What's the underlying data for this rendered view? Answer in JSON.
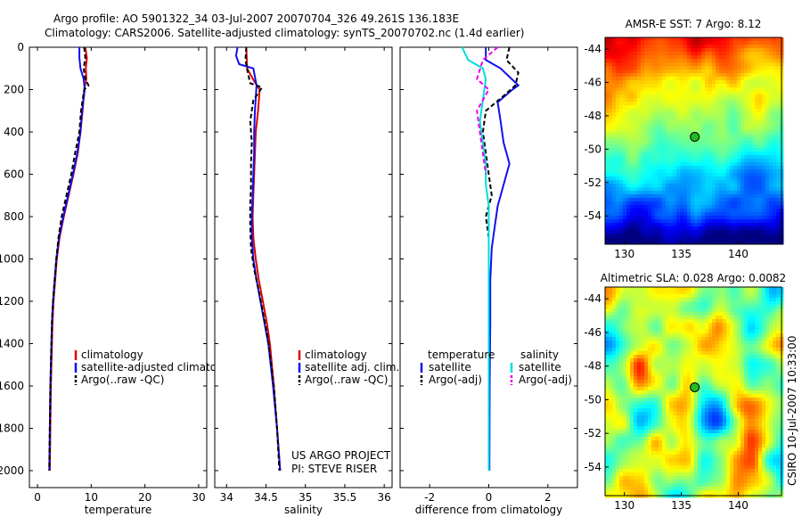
{
  "title_line1": "Argo profile: AO 5901322_34 03-Jul-2007 20070704_326 49.261S 136.183E",
  "title_line2": "Climatology: CARS2006. Satellite-adjusted climatology: synTS_20070702.nc (1.4d earlier)",
  "side_caption": "CSIRO 10-Jul-2007 10:33:00",
  "project_line1": "US ARGO PROJECT",
  "project_line2": "PI: STEVE RISER",
  "colors": {
    "climatology": "#dd0000",
    "satellite": "#1010ee",
    "argo": "#000000",
    "satellite_salinity": "#00dddd",
    "argo_salinity": "#ee00ee",
    "marker": "#22bb22"
  },
  "chart_data": [
    {
      "id": "temperature",
      "type": "line",
      "xlabel": "temperature",
      "ylabel": "",
      "xlim": [
        -1.5,
        31.5
      ],
      "ylim": [
        2080,
        0
      ],
      "y_reversed": true,
      "xticks": [
        "0",
        "10",
        "20",
        "30"
      ],
      "yticks": [
        "0",
        "200",
        "400",
        "600",
        "800",
        "1000",
        "1200",
        "1400",
        "1600",
        "1800",
        "2000"
      ],
      "legend": [
        "climatology",
        "satellite-adjusted climatology",
        "Argo(..raw -QC)"
      ],
      "legend_position": "lower-left",
      "series": [
        {
          "name": "climatology",
          "color": "#dd0000",
          "dash": false,
          "points": [
            [
              8.9,
              0
            ],
            [
              9.2,
              50
            ],
            [
              9.0,
              100
            ],
            [
              9.1,
              150
            ],
            [
              8.7,
              200
            ],
            [
              8.4,
              300
            ],
            [
              8.0,
              400
            ],
            [
              7.5,
              500
            ],
            [
              6.7,
              600
            ],
            [
              5.8,
              700
            ],
            [
              4.9,
              800
            ],
            [
              4.1,
              900
            ],
            [
              3.6,
              1000
            ],
            [
              3.3,
              1100
            ],
            [
              3.0,
              1200
            ],
            [
              2.8,
              1300
            ],
            [
              2.7,
              1400
            ],
            [
              2.5,
              1600
            ],
            [
              2.4,
              1800
            ],
            [
              2.3,
              2000
            ]
          ]
        },
        {
          "name": "satellite-adjusted climatology",
          "color": "#1010ee",
          "dash": false,
          "points": [
            [
              7.8,
              0
            ],
            [
              7.8,
              50
            ],
            [
              8.0,
              100
            ],
            [
              8.6,
              150
            ],
            [
              8.8,
              200
            ],
            [
              8.3,
              300
            ],
            [
              8.0,
              400
            ],
            [
              7.4,
              500
            ],
            [
              6.6,
              600
            ],
            [
              5.7,
              700
            ],
            [
              4.8,
              800
            ],
            [
              4.0,
              900
            ],
            [
              3.5,
              1000
            ],
            [
              3.2,
              1100
            ],
            [
              2.9,
              1200
            ],
            [
              2.7,
              1300
            ],
            [
              2.6,
              1400
            ],
            [
              2.4,
              1600
            ],
            [
              2.3,
              1800
            ],
            [
              2.2,
              2000
            ]
          ]
        },
        {
          "name": "Argo(..raw -QC)",
          "color": "#000000",
          "dash": true,
          "points": [
            [
              8.7,
              0
            ],
            [
              8.9,
              50
            ],
            [
              8.6,
              100
            ],
            [
              8.9,
              150
            ],
            [
              9.5,
              180
            ],
            [
              8.7,
              200
            ],
            [
              8.1,
              300
            ],
            [
              7.8,
              400
            ],
            [
              7.0,
              500
            ],
            [
              6.3,
              600
            ],
            [
              5.4,
              700
            ],
            [
              4.5,
              800
            ],
            [
              3.9,
              900
            ],
            [
              3.5,
              1000
            ],
            [
              3.2,
              1100
            ],
            [
              2.9,
              1200
            ],
            [
              2.7,
              1300
            ],
            [
              2.6,
              1400
            ],
            [
              2.4,
              1600
            ],
            [
              2.3,
              1800
            ],
            [
              2.2,
              2000
            ]
          ]
        }
      ]
    },
    {
      "id": "salinity",
      "type": "line",
      "xlabel": "salinity",
      "xlim": [
        33.85,
        36.1
      ],
      "ylim": [
        2080,
        0
      ],
      "y_reversed": true,
      "xticks": [
        "34",
        "34.5",
        "35",
        "35.5",
        "36"
      ],
      "legend": [
        "climatology",
        "satellite adj. clim.",
        "Argo(..raw -QC)"
      ],
      "legend_position": "lower-right",
      "series": [
        {
          "name": "climatology",
          "color": "#dd0000",
          "dash": false,
          "points": [
            [
              34.25,
              0
            ],
            [
              34.26,
              100
            ],
            [
              34.35,
              160
            ],
            [
              34.42,
              200
            ],
            [
              34.4,
              300
            ],
            [
              34.37,
              400
            ],
            [
              34.36,
              500
            ],
            [
              34.35,
              600
            ],
            [
              34.34,
              700
            ],
            [
              34.33,
              800
            ],
            [
              34.34,
              900
            ],
            [
              34.37,
              1000
            ],
            [
              34.41,
              1100
            ],
            [
              34.46,
              1200
            ],
            [
              34.51,
              1300
            ],
            [
              34.55,
              1400
            ],
            [
              34.6,
              1600
            ],
            [
              34.64,
              1800
            ],
            [
              34.68,
              2000
            ]
          ]
        },
        {
          "name": "satellite adj. clim.",
          "color": "#1010ee",
          "dash": false,
          "points": [
            [
              34.14,
              0
            ],
            [
              34.12,
              40
            ],
            [
              34.16,
              80
            ],
            [
              34.34,
              100
            ],
            [
              34.38,
              180
            ],
            [
              34.36,
              300
            ],
            [
              34.35,
              400
            ],
            [
              34.35,
              500
            ],
            [
              34.34,
              600
            ],
            [
              34.33,
              700
            ],
            [
              34.32,
              800
            ],
            [
              34.32,
              900
            ],
            [
              34.34,
              1000
            ],
            [
              34.38,
              1100
            ],
            [
              34.43,
              1200
            ],
            [
              34.48,
              1300
            ],
            [
              34.53,
              1400
            ],
            [
              34.59,
              1600
            ],
            [
              34.64,
              1800
            ],
            [
              34.68,
              2000
            ]
          ]
        },
        {
          "name": "Argo(..raw -QC)",
          "color": "#000000",
          "dash": true,
          "points": [
            [
              34.25,
              0
            ],
            [
              34.24,
              60
            ],
            [
              34.27,
              120
            ],
            [
              34.3,
              170
            ],
            [
              34.45,
              190
            ],
            [
              34.34,
              250
            ],
            [
              34.3,
              350
            ],
            [
              34.32,
              450
            ],
            [
              34.31,
              550
            ],
            [
              34.31,
              650
            ],
            [
              34.3,
              750
            ],
            [
              34.3,
              850
            ],
            [
              34.31,
              950
            ],
            [
              34.35,
              1050
            ],
            [
              34.41,
              1150
            ],
            [
              34.46,
              1250
            ],
            [
              34.51,
              1350
            ],
            [
              34.55,
              1450
            ],
            [
              34.6,
              1600
            ],
            [
              34.64,
              1800
            ],
            [
              34.67,
              2000
            ]
          ]
        }
      ]
    },
    {
      "id": "difference",
      "type": "line",
      "xlabel": "difference from climatology",
      "xlim": [
        -3,
        3
      ],
      "ylim": [
        2080,
        0
      ],
      "y_reversed": true,
      "xticks": [
        "-2",
        "0",
        "2"
      ],
      "legend_groups": [
        {
          "heading": "temperature",
          "entries": [
            "satellite",
            "Argo(-adj)"
          ]
        },
        {
          "heading": "salinity",
          "entries": [
            "satellite",
            "Argo(-adj)"
          ]
        }
      ],
      "legend_position": "lower-center",
      "series": [
        {
          "name": "temperature satellite",
          "color": "#1010ee",
          "dash": false,
          "points": [
            [
              -0.1,
              0
            ],
            [
              -0.1,
              60
            ],
            [
              0.4,
              100
            ],
            [
              1.0,
              180
            ],
            [
              0.8,
              200
            ],
            [
              0.3,
              260
            ],
            [
              0.4,
              350
            ],
            [
              0.5,
              450
            ],
            [
              0.7,
              550
            ],
            [
              0.5,
              650
            ],
            [
              0.3,
              750
            ],
            [
              0.2,
              850
            ],
            [
              0.1,
              950
            ],
            [
              0.05,
              1100
            ],
            [
              0.05,
              1300
            ],
            [
              0.03,
              1600
            ],
            [
              0.02,
              2000
            ]
          ]
        },
        {
          "name": "temperature Argo(-adj)",
          "color": "#000000",
          "dash": true,
          "points": [
            [
              0.7,
              0
            ],
            [
              0.6,
              60
            ],
            [
              1.0,
              120
            ],
            [
              0.9,
              180
            ],
            [
              0.5,
              230
            ],
            [
              -0.1,
              300
            ],
            [
              -0.2,
              400
            ],
            [
              -0.1,
              500
            ],
            [
              0.0,
              600
            ],
            [
              0.1,
              700
            ],
            [
              -0.1,
              800
            ],
            [
              0.0,
              900
            ],
            [
              0.0,
              1000
            ]
          ]
        },
        {
          "name": "salinity satellite",
          "color": "#00dddd",
          "dash": false,
          "points": [
            [
              -0.9,
              0
            ],
            [
              -0.7,
              60
            ],
            [
              -0.2,
              100
            ],
            [
              -0.1,
              150
            ],
            [
              -0.2,
              250
            ],
            [
              -0.3,
              350
            ],
            [
              -0.2,
              450
            ],
            [
              -0.1,
              550
            ],
            [
              -0.1,
              650
            ],
            [
              0.0,
              750
            ],
            [
              0.0,
              850
            ],
            [
              0.0,
              950
            ],
            [
              0.0,
              1100
            ],
            [
              0.0,
              1400
            ],
            [
              0.0,
              2000
            ]
          ]
        },
        {
          "name": "salinity Argo(-adj)",
          "color": "#ee00ee",
          "dash": true,
          "points": [
            [
              0.3,
              0
            ],
            [
              -0.2,
              60
            ],
            [
              -0.4,
              150
            ],
            [
              0.0,
              200
            ],
            [
              -0.4,
              300
            ],
            [
              -0.3,
              400
            ],
            [
              -0.2,
              500
            ],
            [
              -0.1,
              600
            ]
          ]
        }
      ]
    }
  ],
  "maps": [
    {
      "id": "sst",
      "title": "AMSR-E SST: 7 Argo: 8.12",
      "xticks": [
        "130",
        "135",
        "140"
      ],
      "yticks": [
        "-44",
        "-46",
        "-48",
        "-50",
        "-52",
        "-54"
      ],
      "xlim": [
        128.3,
        143.8
      ],
      "ylim": [
        -55.7,
        -43.3
      ],
      "marker": {
        "lon": 136.18,
        "lat": -49.26
      },
      "field": "sst"
    },
    {
      "id": "sla",
      "title": "Altimetric SLA: 0.028 Argo: 0.0082",
      "xticks": [
        "130",
        "135",
        "140"
      ],
      "yticks": [
        "-44",
        "-46",
        "-48",
        "-50",
        "-52",
        "-54"
      ],
      "xlim": [
        128.3,
        143.8
      ],
      "ylim": [
        -55.7,
        -43.3
      ],
      "marker": {
        "lon": 136.18,
        "lat": -49.26
      },
      "field": "sla"
    }
  ]
}
